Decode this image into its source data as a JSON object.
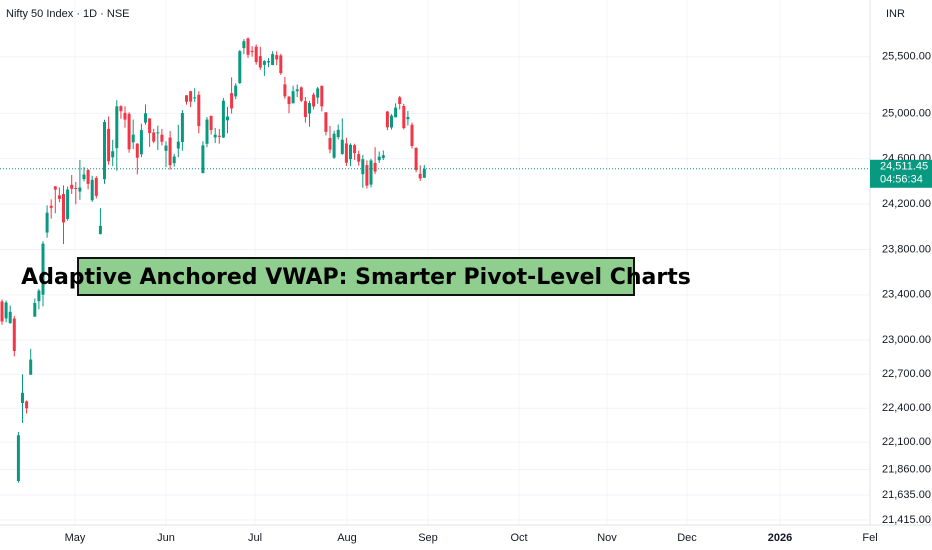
{
  "chart_data": {
    "type": "candlestick",
    "source": "Nifty 50 Index · 1D · NSE",
    "currency": "INR",
    "title": "Adaptive Anchored VWAP: Smarter Pivot-Level Charts",
    "up_color": "#089981",
    "down_color": "#f23645",
    "grid": true,
    "ylim": [
      21370,
      26000
    ],
    "yticks": [
      {
        "value": 25500,
        "label": "25,500.00"
      },
      {
        "value": 25000,
        "label": "25,000.00"
      },
      {
        "value": 24600,
        "label": "24,600.00"
      },
      {
        "value": 24200,
        "label": "24,200.00"
      },
      {
        "value": 23800,
        "label": "23,800.00"
      },
      {
        "value": 23400,
        "label": "23,400.00"
      },
      {
        "value": 23000,
        "label": "23,000.00"
      },
      {
        "value": 22700,
        "label": "22,700.00"
      },
      {
        "value": 22400,
        "label": "22,400.00"
      },
      {
        "value": 22100,
        "label": "22,100.00"
      },
      {
        "value": 21860,
        "label": "21,860.00"
      },
      {
        "value": 21635,
        "label": "21,635.00"
      },
      {
        "value": 21415,
        "label": "21,415.00"
      }
    ],
    "x_labels": [
      "May",
      "Jun",
      "Jul",
      "Aug",
      "Sep",
      "Oct",
      "Nov",
      "Dec",
      "2026",
      "Fel"
    ],
    "last_price": {
      "value": 24511.45,
      "label": "24,511.45"
    },
    "countdown": "04:56:34",
    "open": [
      23341,
      23192,
      23150,
      23191,
      21758,
      22446,
      22460,
      22695,
      23207,
      23344,
      23401,
      23949,
      24185,
      24357,
      24277,
      24289,
      24070,
      24370,
      24342,
      24311,
      24420,
      24500,
      24234,
      24431,
      23935,
      24420,
      24864,
      24613,
      24694,
      25064,
      25005,
      24996,
      24745,
      24733,
      24639,
      24919,
      24956,
      24832,
      24826,
      24812,
      24670,
      24787,
      24561,
      24691,
      24748,
      25160,
      25196,
      25134,
      25164,
      24473,
      24732,
      24977,
      24788,
      24803,
      24787,
      24939,
      25179,
      25150,
      25268,
      25576,
      25661,
      25551,
      25588,
      25505,
      25428,
      25450,
      25427,
      25514,
      25511,
      25256,
      25149,
      25089,
      25196,
      25230,
      25108,
      24999,
      25166,
      25139,
      25243,
      25010,
      24783,
      24609,
      24791,
      24642,
      24735,
      24596,
      24720,
      24641,
      24464,
      24544,
      24372,
      24563,
      24587,
      24607,
      25016,
      24876,
      24965,
      25142,
      25065,
      24949,
      24900,
      24695,
      24467,
      24432
    ],
    "high": [
      23360,
      23350,
      23306,
      23214,
      22190,
      22698,
      22468,
      22924,
      23368,
      23452,
      23872,
      24189,
      24242,
      24359,
      24347,
      24365,
      24355,
      24457,
      24396,
      24589,
      24526,
      24510,
      24449,
      24447,
      24164,
      24944,
      24973,
      24767,
      25116,
      25071,
      25062,
      25010,
      24946,
      24737,
      24909,
      25079,
      24957,
      24864,
      24892,
      24863,
      24754,
      24845,
      24644,
      24899,
      25029,
      25160,
      25199,
      25222,
      25196,
      24754,
      24967,
      24982,
      24872,
      24863,
      25136,
      25058,
      25318,
      25266,
      25560,
      25655,
      25669,
      25593,
      25608,
      25587,
      25470,
      25489,
      25548,
      25548,
      25525,
      25322,
      25151,
      25245,
      25255,
      25238,
      25144,
      25111,
      25182,
      25233,
      25246,
      25010,
      24890,
      24848,
      24902,
      24956,
      24784,
      24736,
      24733,
      24671,
      24634,
      24586,
      24600,
      24702,
      24664,
      24674,
      25022,
      24993,
      25089,
      25154,
      25085,
      25021,
      24919,
      24702,
      24542,
      24545
    ],
    "low": [
      23136,
      23158,
      23145,
      22857,
      21743,
      22270,
      22353,
      22695,
      23207,
      23273,
      23298,
      23903,
      24072,
      24119,
      24216,
      23848,
      24054,
      24290,
      24198,
      24238,
      24400,
      24331,
      24220,
      24250,
      23935,
      24378,
      24547,
      24535,
      24494,
      24953,
      24875,
      24653,
      24685,
      24462,
      24614,
      24900,
      24704,
      24737,
      24677,
      24717,
      24526,
      24502,
      24530,
      24613,
      24671,
      25077,
      25055,
      25100,
      24825,
      24473,
      24703,
      24813,
      24738,
      24733,
      24783,
      24825,
      24999,
      25125,
      25259,
      25524,
      25490,
      25500,
      25430,
      25384,
      25331,
      25407,
      25425,
      25425,
      25340,
      25129,
      25001,
      25088,
      25144,
      25101,
      24919,
      24883,
      25035,
      25085,
      25018,
      24806,
      24647,
      24598,
      24771,
      24635,
      24536,
      24535,
      24590,
      24539,
      24344,
      24337,
      24347,
      24465,
      24563,
      24588,
      24852,
      24858,
      24965,
      25034,
      24859,
      24893,
      24689,
      24481,
      24404,
      24432
    ],
    "close": [
      23165,
      23332,
      23250,
      22904,
      22161,
      22536,
      22399,
      22829,
      23328,
      23437,
      23851,
      24125,
      24167,
      24328,
      24246,
      24039,
      24328,
      24335,
      24334,
      24346,
      24461,
      24379,
      24414,
      24273,
      24008,
      24924,
      24578,
      24666,
      25062,
      25019,
      24945,
      24683,
      24813,
      24609,
      24853,
      25001,
      24826,
      24752,
      24833,
      24750,
      24716,
      24543,
      24620,
      24751,
      25003,
      25103,
      25104,
      25141,
      24888,
      24718,
      24946,
      24853,
      24812,
      24793,
      25112,
      24972,
      25044,
      25245,
      25549,
      25637,
      25517,
      25541,
      25453,
      25405,
      25461,
      25461,
      25523,
      25476,
      25355,
      25150,
      25082,
      25196,
      25212,
      25112,
      24968,
      25091,
      25061,
      25220,
      25062,
      24837,
      24681,
      24821,
      24855,
      24768,
      24565,
      24723,
      24650,
      24574,
      24596,
      24363,
      24585,
      24487,
      24619,
      24631,
      24877,
      24980,
      25051,
      25083,
      24870,
      24968,
      24712,
      24501,
      24427,
      24511.45
    ]
  }
}
